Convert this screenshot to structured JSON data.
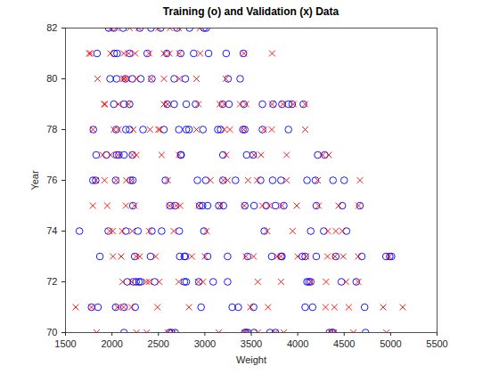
{
  "chart_data": {
    "type": "scatter",
    "title": "Training (o) and Validation (x) Data",
    "x_label": "Weight",
    "y_label": "Year",
    "xlim": [
      1500,
      5500
    ],
    "xticks": [
      1500,
      2000,
      2500,
      3000,
      3500,
      4000,
      4500,
      5000,
      5500
    ],
    "ylim": [
      70,
      82
    ],
    "yticks": [
      70,
      72,
      74,
      76,
      78,
      80,
      82
    ],
    "grid": false,
    "series": [
      {
        "color": "#0000ff",
        "marker": "circle",
        "x": [
          1965,
          2020,
          2120,
          2300,
          2420,
          2525,
          2700,
          2835,
          2990,
          3015,
          1840,
          2025,
          2055,
          2190,
          2380,
          2590,
          2740,
          2880,
          3040,
          3230,
          3415,
          1980,
          2050,
          2145,
          2220,
          2310,
          2430,
          2670,
          2790,
          3250,
          3380,
          2020,
          2130,
          2190,
          2595,
          2670,
          2800,
          2900,
          3190,
          3260,
          3420,
          3620,
          3735,
          3830,
          3900,
          3940,
          4060,
          1800,
          2045,
          2150,
          2190,
          2335,
          2560,
          2720,
          2800,
          2830,
          2980,
          3140,
          3170,
          3410,
          3430,
          3620,
          3900,
          1830,
          1940,
          2050,
          2075,
          2130,
          2220,
          2740,
          2745,
          3195,
          3450,
          3520,
          4215,
          4290,
          1795,
          1825,
          2040,
          2200,
          2225,
          2575,
          2920,
          3010,
          3195,
          3330,
          3600,
          3730,
          3820,
          4100,
          4190,
          4380,
          4500,
          2225,
          2625,
          2680,
          2945,
          2975,
          3030,
          3150,
          3200,
          3430,
          3530,
          3660,
          3760,
          3850,
          4200,
          4480,
          4670,
          1650,
          1960,
          2150,
          2280,
          2430,
          2535,
          2725,
          2990,
          3640,
          4140,
          4280,
          4525,
          1870,
          2245,
          2415,
          2730,
          2780,
          2790,
          3030,
          3245,
          3460,
          3720,
          3820,
          3830,
          4050,
          4080,
          4200,
          4410,
          4690,
          4950,
          4990,
          5010,
          2165,
          2230,
          2260,
          2290,
          2310,
          2460,
          2780,
          2800,
          2935,
          3090,
          3245,
          4100,
          4120,
          4140,
          4470,
          4630,
          1780,
          1850,
          2040,
          2130,
          2250,
          2960,
          3295,
          3360,
          3525,
          4080,
          4160,
          4720,
          2130,
          2620,
          2640,
          2680,
          3430,
          3445,
          3465,
          3530,
          3700,
          3760,
          4340,
          4370,
          4380,
          4730
        ],
        "values": [
          82,
          82,
          82,
          82,
          82,
          82,
          82,
          82,
          82,
          82,
          81,
          81,
          81,
          81,
          81,
          81,
          81,
          81,
          81,
          81,
          81,
          80,
          80,
          80,
          80,
          80,
          80,
          80,
          80,
          80,
          80,
          79,
          79,
          79,
          79,
          79,
          79,
          79,
          79,
          79,
          79,
          79,
          79,
          79,
          79,
          79,
          79,
          78,
          78,
          78,
          78,
          78,
          78,
          78,
          78,
          78,
          78,
          78,
          78,
          78,
          78,
          78,
          78,
          77,
          77,
          77,
          77,
          77,
          77,
          77,
          77,
          77,
          77,
          77,
          77,
          77,
          76,
          76,
          76,
          76,
          76,
          76,
          76,
          76,
          76,
          76,
          76,
          76,
          76,
          76,
          76,
          76,
          76,
          75,
          75,
          75,
          75,
          75,
          75,
          75,
          75,
          75,
          75,
          75,
          75,
          75,
          75,
          75,
          75,
          74,
          74,
          74,
          74,
          74,
          74,
          74,
          74,
          74,
          74,
          74,
          74,
          73,
          73,
          73,
          73,
          73,
          73,
          73,
          73,
          73,
          73,
          73,
          73,
          73,
          73,
          73,
          73,
          73,
          73,
          73,
          73,
          72,
          72,
          72,
          72,
          72,
          72,
          72,
          72,
          72,
          72,
          72,
          72,
          72,
          72,
          72,
          72,
          71,
          71,
          71,
          71,
          71,
          71,
          71,
          71,
          71,
          71,
          71,
          71,
          70,
          70,
          70,
          70,
          70,
          70,
          70,
          70,
          70,
          70,
          70,
          70,
          70,
          70
        ]
      },
      {
        "color": "#ff0000",
        "marker": "x",
        "x": [
          1990,
          2050,
          2190,
          2290,
          2500,
          2625,
          2720,
          2945,
          1755,
          1770,
          1985,
          2125,
          2180,
          2250,
          2400,
          2560,
          2620,
          2725,
          2950,
          3420,
          3725,
          1845,
          2120,
          2135,
          2160,
          2265,
          2420,
          2560,
          2725,
          2910,
          3225,
          1915,
          1925,
          2070,
          2180,
          2560,
          2600,
          2930,
          3160,
          3210,
          3380,
          3445,
          3725,
          3840,
          3955,
          4080,
          1795,
          2020,
          2070,
          2230,
          2410,
          2500,
          2515,
          2910,
          3210,
          3270,
          3420,
          3635,
          3720,
          4080,
          1900,
          1985,
          2065,
          2220,
          2265,
          2535,
          2720,
          3230,
          3530,
          3605,
          3880,
          4270,
          4335,
          1825,
          1920,
          2045,
          2155,
          2210,
          2600,
          3060,
          3200,
          3245,
          3465,
          3565,
          3880,
          4215,
          4670,
          1795,
          1950,
          2150,
          2245,
          2620,
          2690,
          2735,
          2935,
          3165,
          3425,
          3620,
          3695,
          3830,
          3990,
          4225,
          4440,
          4655,
          1975,
          2010,
          2110,
          2220,
          2400,
          2665,
          3020,
          3670,
          3945,
          4325,
          4410,
          4480,
          2010,
          2100,
          2260,
          2300,
          2470,
          2860,
          3000,
          3440,
          3525,
          3780,
          3820,
          4000,
          4090,
          4320,
          4400,
          4490,
          4650,
          4985,
          2115,
          2210,
          2370,
          2400,
          2510,
          2720,
          2930,
          2980,
          3570,
          3820,
          4140,
          4305,
          4520,
          4650,
          1610,
          1780,
          2060,
          2125,
          2210,
          2490,
          2830,
          3490,
          3680,
          4300,
          4395,
          4550,
          4920,
          5130,
          1835,
          2265,
          2375,
          2600,
          2660,
          3150,
          3435,
          3440,
          3570,
          3760,
          3850,
          4355,
          4390,
          4600,
          4955
        ],
        "values": [
          82,
          82,
          82,
          82,
          82,
          82,
          82,
          82,
          81,
          81,
          81,
          81,
          81,
          81,
          81,
          81,
          81,
          81,
          81,
          81,
          81,
          80,
          80,
          80,
          80,
          80,
          80,
          80,
          80,
          80,
          80,
          79,
          79,
          79,
          79,
          79,
          79,
          79,
          79,
          79,
          79,
          79,
          79,
          79,
          79,
          79,
          78,
          78,
          78,
          78,
          78,
          78,
          78,
          78,
          78,
          78,
          78,
          78,
          78,
          78,
          77,
          77,
          77,
          77,
          77,
          77,
          77,
          77,
          77,
          77,
          77,
          77,
          77,
          76,
          76,
          76,
          76,
          76,
          76,
          76,
          76,
          76,
          76,
          76,
          76,
          76,
          76,
          75,
          75,
          75,
          75,
          75,
          75,
          75,
          75,
          75,
          75,
          75,
          75,
          75,
          75,
          75,
          75,
          75,
          74,
          74,
          74,
          74,
          74,
          74,
          74,
          74,
          74,
          74,
          74,
          74,
          73,
          73,
          73,
          73,
          73,
          73,
          73,
          73,
          73,
          73,
          73,
          73,
          73,
          73,
          73,
          73,
          73,
          73,
          72,
          72,
          72,
          72,
          72,
          72,
          72,
          72,
          72,
          72,
          72,
          72,
          72,
          72,
          71,
          71,
          71,
          71,
          71,
          71,
          71,
          71,
          71,
          71,
          71,
          71,
          71,
          71,
          70,
          70,
          70,
          70,
          70,
          70,
          70,
          70,
          70,
          70,
          70,
          70,
          70,
          70,
          70
        ]
      }
    ]
  }
}
